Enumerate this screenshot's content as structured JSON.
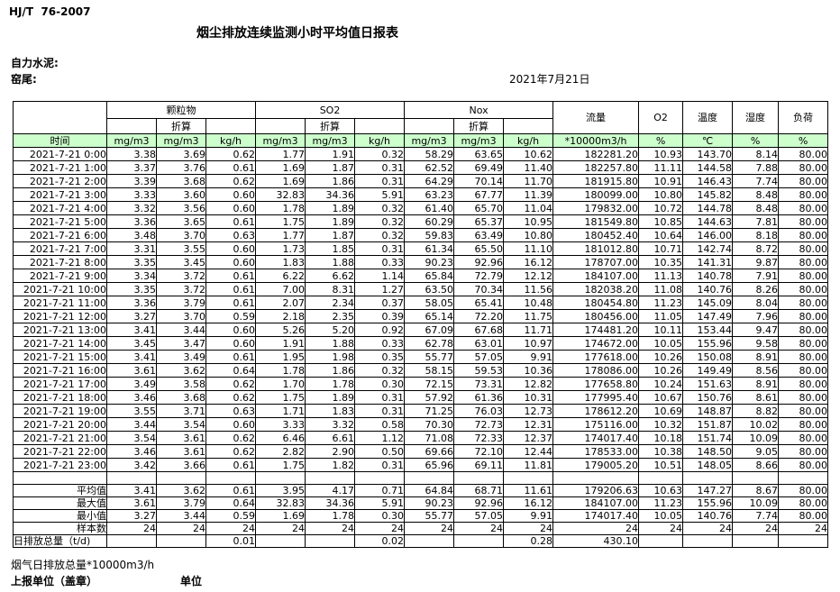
{
  "meta": {
    "standard": "HJ/T  76-2007",
    "title": "烟尘排放连续监测小时平均值日报表",
    "company": "自力水泥:",
    "site": "窑尾:",
    "date": "2021年7月21日"
  },
  "table": {
    "time_header": "时间",
    "groups": [
      {
        "label": "颗粒物",
        "sub": "折算"
      },
      {
        "label": "SO2",
        "sub": "折算"
      },
      {
        "label": "Nox",
        "sub": "折算"
      }
    ],
    "single_columns": [
      "流量",
      "O2",
      "温度",
      "湿度",
      "负荷"
    ],
    "units": [
      "mg/m3",
      "mg/m3",
      "kg/h",
      "mg/m3",
      "mg/m3",
      "kg/h",
      "mg/m3",
      "mg/m3",
      "kg/h",
      "*10000m3/h",
      "%",
      "℃",
      "%",
      "%"
    ],
    "rows": [
      {
        "time": "2021-7-21 0:00",
        "values": [
          "3.38",
          "3.69",
          "0.62",
          "1.77",
          "1.91",
          "0.32",
          "58.29",
          "63.65",
          "10.62",
          "182281.20",
          "10.93",
          "143.70",
          "8.14",
          "80.00"
        ]
      },
      {
        "time": "2021-7-21 1:00",
        "values": [
          "3.37",
          "3.76",
          "0.61",
          "1.69",
          "1.87",
          "0.31",
          "62.52",
          "69.49",
          "11.40",
          "182257.80",
          "11.11",
          "144.58",
          "7.88",
          "80.00"
        ]
      },
      {
        "time": "2021-7-21 2:00",
        "values": [
          "3.39",
          "3.68",
          "0.62",
          "1.69",
          "1.86",
          "0.31",
          "64.29",
          "70.14",
          "11.70",
          "181915.80",
          "10.91",
          "146.43",
          "7.74",
          "80.00"
        ]
      },
      {
        "time": "2021-7-21 3:00",
        "values": [
          "3.33",
          "3.60",
          "0.60",
          "32.83",
          "34.36",
          "5.91",
          "63.23",
          "67.77",
          "11.39",
          "180099.00",
          "10.80",
          "145.82",
          "8.48",
          "80.00"
        ]
      },
      {
        "time": "2021-7-21 4:00",
        "values": [
          "3.32",
          "3.56",
          "0.60",
          "1.78",
          "1.89",
          "0.32",
          "61.40",
          "65.70",
          "11.04",
          "179832.00",
          "10.72",
          "144.78",
          "8.48",
          "80.00"
        ]
      },
      {
        "time": "2021-7-21 5:00",
        "values": [
          "3.36",
          "3.65",
          "0.61",
          "1.75",
          "1.89",
          "0.32",
          "60.29",
          "65.37",
          "10.95",
          "181549.80",
          "10.85",
          "144.63",
          "7.81",
          "80.00"
        ]
      },
      {
        "time": "2021-7-21 6:00",
        "values": [
          "3.48",
          "3.70",
          "0.63",
          "1.77",
          "1.87",
          "0.32",
          "59.83",
          "63.49",
          "10.80",
          "180452.40",
          "10.64",
          "146.00",
          "8.18",
          "80.00"
        ]
      },
      {
        "time": "2021-7-21 7:00",
        "values": [
          "3.31",
          "3.55",
          "0.60",
          "1.73",
          "1.85",
          "0.31",
          "61.34",
          "65.50",
          "11.10",
          "181012.80",
          "10.71",
          "142.74",
          "8.72",
          "80.00"
        ]
      },
      {
        "time": "2021-7-21 8:00",
        "values": [
          "3.35",
          "3.45",
          "0.60",
          "1.83",
          "1.88",
          "0.33",
          "90.23",
          "92.96",
          "16.12",
          "178707.00",
          "10.35",
          "141.31",
          "9.87",
          "80.00"
        ]
      },
      {
        "time": "2021-7-21 9:00",
        "values": [
          "3.34",
          "3.72",
          "0.61",
          "6.22",
          "6.62",
          "1.14",
          "65.84",
          "72.79",
          "12.12",
          "184107.00",
          "11.13",
          "140.78",
          "7.91",
          "80.00"
        ]
      },
      {
        "time": "2021-7-21 10:00",
        "values": [
          "3.35",
          "3.72",
          "0.61",
          "7.00",
          "8.31",
          "1.27",
          "63.50",
          "70.34",
          "11.56",
          "182038.20",
          "11.08",
          "140.76",
          "8.26",
          "80.00"
        ]
      },
      {
        "time": "2021-7-21 11:00",
        "values": [
          "3.36",
          "3.79",
          "0.61",
          "2.07",
          "2.34",
          "0.37",
          "58.05",
          "65.41",
          "10.48",
          "180454.80",
          "11.23",
          "145.09",
          "8.04",
          "80.00"
        ]
      },
      {
        "time": "2021-7-21 12:00",
        "values": [
          "3.27",
          "3.70",
          "0.59",
          "2.18",
          "2.35",
          "0.39",
          "65.14",
          "72.20",
          "11.75",
          "180456.00",
          "11.05",
          "147.49",
          "7.96",
          "80.00"
        ]
      },
      {
        "time": "2021-7-21 13:00",
        "values": [
          "3.41",
          "3.44",
          "0.60",
          "5.26",
          "5.20",
          "0.92",
          "67.09",
          "67.68",
          "11.71",
          "174481.20",
          "10.11",
          "153.44",
          "9.47",
          "80.00"
        ]
      },
      {
        "time": "2021-7-21 14:00",
        "values": [
          "3.45",
          "3.47",
          "0.60",
          "1.91",
          "1.88",
          "0.33",
          "62.78",
          "63.01",
          "10.97",
          "174672.00",
          "10.05",
          "155.96",
          "9.58",
          "80.00"
        ]
      },
      {
        "time": "2021-7-21 15:00",
        "values": [
          "3.41",
          "3.49",
          "0.61",
          "1.95",
          "1.98",
          "0.35",
          "55.77",
          "57.05",
          "9.91",
          "177618.00",
          "10.26",
          "150.08",
          "8.91",
          "80.00"
        ]
      },
      {
        "time": "2021-7-21 16:00",
        "values": [
          "3.61",
          "3.62",
          "0.64",
          "1.78",
          "1.86",
          "0.32",
          "58.15",
          "59.53",
          "10.36",
          "178086.00",
          "10.26",
          "149.49",
          "8.56",
          "80.00"
        ]
      },
      {
        "time": "2021-7-21 17:00",
        "values": [
          "3.49",
          "3.58",
          "0.62",
          "1.70",
          "1.78",
          "0.30",
          "72.15",
          "73.31",
          "12.82",
          "177658.80",
          "10.24",
          "151.63",
          "8.91",
          "80.00"
        ]
      },
      {
        "time": "2021-7-21 18:00",
        "values": [
          "3.46",
          "3.68",
          "0.62",
          "1.75",
          "1.89",
          "0.31",
          "57.92",
          "61.36",
          "10.31",
          "177995.40",
          "10.67",
          "150.76",
          "8.61",
          "80.00"
        ]
      },
      {
        "time": "2021-7-21 19:00",
        "values": [
          "3.55",
          "3.71",
          "0.63",
          "1.71",
          "1.83",
          "0.31",
          "71.25",
          "76.03",
          "12.73",
          "178612.20",
          "10.69",
          "148.87",
          "8.82",
          "80.00"
        ]
      },
      {
        "time": "2021-7-21 20:00",
        "values": [
          "3.44",
          "3.54",
          "0.60",
          "3.33",
          "3.32",
          "0.58",
          "70.30",
          "72.73",
          "12.31",
          "175116.00",
          "10.32",
          "151.87",
          "10.02",
          "80.00"
        ]
      },
      {
        "time": "2021-7-21 21:00",
        "values": [
          "3.54",
          "3.61",
          "0.62",
          "6.46",
          "6.61",
          "1.12",
          "71.08",
          "72.33",
          "12.37",
          "174017.40",
          "10.18",
          "151.74",
          "10.09",
          "80.00"
        ]
      },
      {
        "time": "2021-7-21 22:00",
        "values": [
          "3.46",
          "3.61",
          "0.62",
          "2.82",
          "2.90",
          "0.50",
          "69.66",
          "72.10",
          "12.44",
          "178533.00",
          "10.38",
          "148.50",
          "9.05",
          "80.00"
        ]
      },
      {
        "time": "2021-7-21 23:00",
        "values": [
          "3.42",
          "3.66",
          "0.61",
          "1.75",
          "1.82",
          "0.31",
          "65.96",
          "69.11",
          "11.81",
          "179005.20",
          "10.51",
          "148.05",
          "8.66",
          "80.00"
        ]
      }
    ],
    "summary": [
      {
        "label": "平均值",
        "values": [
          "3.41",
          "3.62",
          "0.61",
          "3.95",
          "4.17",
          "0.71",
          "64.84",
          "68.71",
          "11.61",
          "179206.63",
          "10.63",
          "147.27",
          "8.67",
          "80.00"
        ]
      },
      {
        "label": "最大值",
        "values": [
          "3.61",
          "3.79",
          "0.64",
          "32.83",
          "34.36",
          "5.91",
          "90.23",
          "92.96",
          "16.12",
          "184107.00",
          "11.23",
          "155.96",
          "10.09",
          "80.00"
        ]
      },
      {
        "label": "最小值",
        "values": [
          "3.27",
          "3.44",
          "0.59",
          "1.69",
          "1.78",
          "0.30",
          "55.77",
          "57.05",
          "9.91",
          "174017.40",
          "10.05",
          "140.76",
          "7.74",
          "80.00"
        ]
      },
      {
        "label": "样本数",
        "values": [
          "24",
          "24",
          "24",
          "24",
          "24",
          "24",
          "24",
          "24",
          "24",
          "24",
          "24",
          "24",
          "24",
          "24"
        ]
      },
      {
        "label": "日排放总量（t/d)",
        "values": [
          "",
          "",
          "0.01",
          "",
          "",
          "0.02",
          "",
          "",
          "0.28",
          "430.10",
          "",
          "",
          "",
          ""
        ]
      }
    ]
  },
  "footer": {
    "note": "烟气日排放总量*10000m3/h",
    "report_unit": "上报单位（盖章）",
    "unit": "单位"
  }
}
